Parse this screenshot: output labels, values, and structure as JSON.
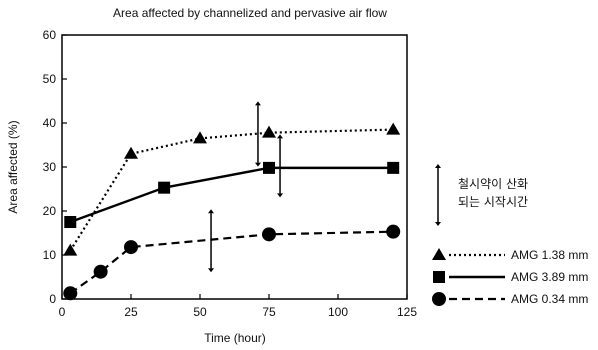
{
  "chart_data": {
    "type": "line",
    "title": "Area affected by channelized and pervasive air flow",
    "xlabel": "Time (hour)",
    "ylabel": "Area affected (%)",
    "xlim": [
      0,
      125
    ],
    "ylim": [
      0,
      60
    ],
    "x_ticks": [
      0,
      25,
      50,
      75,
      100,
      125
    ],
    "y_ticks": [
      0,
      10,
      20,
      30,
      40,
      50,
      60
    ],
    "grid": false,
    "legend_position": "bottom-right",
    "series": [
      {
        "name": "AMG 1.38 mm",
        "marker": "triangle",
        "line_style": "dotted",
        "color": "#000000",
        "points": [
          [
            3,
            11
          ],
          [
            25,
            33
          ],
          [
            50,
            36.5
          ],
          [
            75,
            37.8
          ],
          [
            120,
            38.5
          ]
        ]
      },
      {
        "name": "AMG 3.89 mm",
        "marker": "square",
        "line_style": "solid",
        "color": "#000000",
        "points": [
          [
            3,
            17.5
          ],
          [
            37,
            25.3
          ],
          [
            75,
            29.8
          ],
          [
            120,
            29.8
          ]
        ]
      },
      {
        "name": "AMG 0.34 mm",
        "marker": "circle",
        "line_style": "dashed",
        "color": "#000000",
        "points": [
          [
            3,
            1.3
          ],
          [
            14,
            6.2
          ],
          [
            25,
            11.8
          ],
          [
            75,
            14.7
          ],
          [
            120,
            15.3
          ]
        ]
      }
    ],
    "range_bars": [
      {
        "x": 71,
        "low": 31,
        "high": 44
      },
      {
        "x": 79,
        "low": 24,
        "high": 36.5
      },
      {
        "x": 54,
        "low": 7,
        "high": 19.5
      }
    ],
    "annotation": {
      "line1": "철시약이 산화",
      "line2": "되는 시작시간"
    }
  }
}
